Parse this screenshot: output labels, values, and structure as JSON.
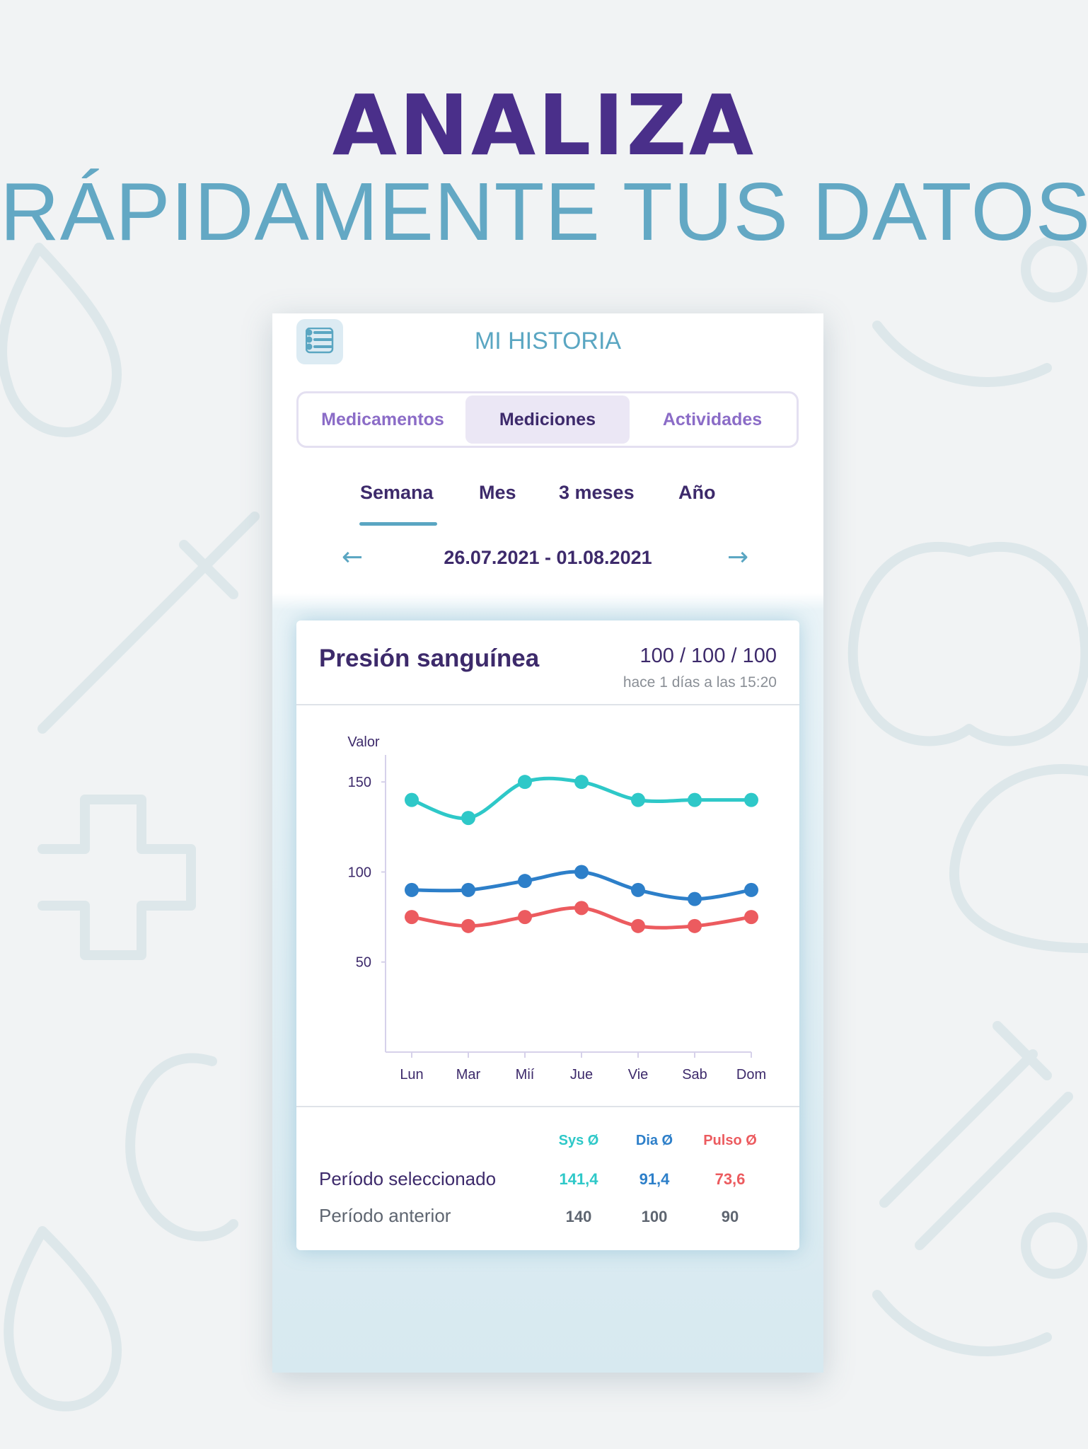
{
  "headline": {
    "line1": "ANALIZA",
    "line2": "RÁPIDAMENTE TUS DATOS"
  },
  "screen": {
    "title": "MI HISTORIA",
    "menu_icon": "list-icon"
  },
  "segments": [
    {
      "label": "Medicamentos",
      "active": false
    },
    {
      "label": "Mediciones",
      "active": true
    },
    {
      "label": "Actividades",
      "active": false
    }
  ],
  "periods": [
    {
      "label": "Semana",
      "active": true
    },
    {
      "label": "Mes",
      "active": false
    },
    {
      "label": "3 meses",
      "active": false
    },
    {
      "label": "Año",
      "active": false
    }
  ],
  "date_nav": {
    "range": "26.07.2021 - 01.08.2021",
    "prev_arrow": "←",
    "next_arrow": "→"
  },
  "card": {
    "title": "Presión sanguínea",
    "latest_values": "100 / 100 / 100",
    "latest_time": "hace 1 días a las 15:20"
  },
  "chart_data": {
    "type": "line",
    "ylabel": "Valor",
    "categories": [
      "Lun",
      "Mar",
      "Mií",
      "Jue",
      "Vie",
      "Sab",
      "Dom"
    ],
    "y_ticks": [
      50,
      100,
      150
    ],
    "ylim": [
      0,
      165
    ],
    "grid": false,
    "series": [
      {
        "name": "Sys Ø",
        "color": "#2ec8c8",
        "values": [
          140,
          130,
          150,
          150,
          140,
          140,
          140
        ]
      },
      {
        "name": "Dia Ø",
        "color": "#2d7fc9",
        "values": [
          90,
          90,
          95,
          100,
          90,
          85,
          90
        ]
      },
      {
        "name": "Pulso Ø",
        "color": "#ec5b5f",
        "values": [
          75,
          70,
          75,
          80,
          70,
          70,
          75
        ]
      }
    ]
  },
  "stats": {
    "headers": [
      "Sys Ø",
      "Dia Ø",
      "Pulso Ø"
    ],
    "selected": {
      "label": "Período seleccionado",
      "values": [
        "141,4",
        "91,4",
        "73,6"
      ]
    },
    "previous": {
      "label": "Período anterior",
      "values": [
        "140",
        "100",
        "90"
      ]
    }
  },
  "colors": {
    "brand_purple": "#4a2f8a",
    "accent_blue": "#5aa6c2",
    "sys": "#2ec8c8",
    "dia": "#2d7fc9",
    "pulse": "#ec5b5f"
  }
}
